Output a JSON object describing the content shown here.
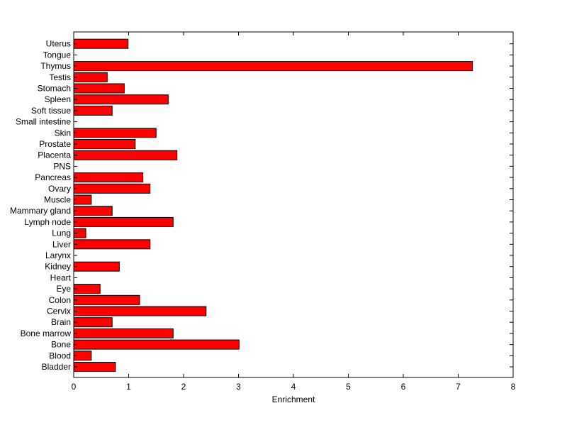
{
  "chart_data": {
    "type": "bar",
    "orientation": "horizontal",
    "categories": [
      "Bladder",
      "Blood",
      "Bone",
      "Bone marrow",
      "Brain",
      "Cervix",
      "Colon",
      "Eye",
      "Heart",
      "Kidney",
      "Larynx",
      "Liver",
      "Lung",
      "Lymph node",
      "Mammary gland",
      "Muscle",
      "Ovary",
      "Pancreas",
      "PNS",
      "Placenta",
      "Prostate",
      "Skin",
      "Small intestine",
      "Soft tissue",
      "Spleen",
      "Stomach",
      "Testis",
      "Thymus",
      "Tongue",
      "Uterus"
    ],
    "values": [
      0.76,
      0.32,
      3.01,
      1.81,
      0.7,
      2.41,
      1.2,
      0.48,
      0,
      0.83,
      0,
      1.39,
      0.22,
      1.81,
      0.7,
      0.32,
      1.39,
      1.26,
      0,
      1.88,
      1.12,
      1.5,
      0,
      0.7,
      1.72,
      0.92,
      0.61,
      7.26,
      0,
      0.99
    ],
    "xlabel": "Enrichment",
    "ylabel": "",
    "title": "",
    "xlim": [
      0,
      8
    ],
    "xticks": [
      "0",
      "1",
      "2",
      "3",
      "4",
      "5",
      "6",
      "7",
      "8"
    ],
    "bar_color": "#ff0000",
    "grid": false
  }
}
